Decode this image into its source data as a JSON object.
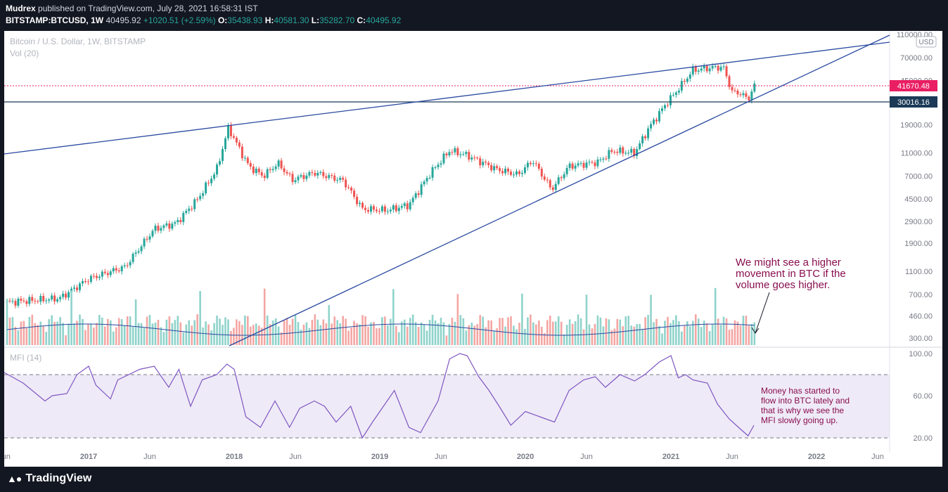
{
  "header": {
    "publisher": "Mudrex",
    "published_text": "published on TradingView.com, July 28, 2021 16:58:31 IST",
    "symbol": "BITSTAMP:BTCUSD, 1W",
    "price": "40495.92",
    "change": "+1020.51 (+2.59%)",
    "o_label": "O:",
    "o_value": "35438.93",
    "h_label": "H:",
    "h_value": "40581.30",
    "l_label": "L:",
    "l_value": "35282.70",
    "c_label": "C:",
    "c_value": "40495.92"
  },
  "legend": {
    "title": "Bitcoin / U.S. Dollar, 1W, BITSTAMP",
    "vol": "Vol (20)",
    "mfi": "MFI (14)",
    "currency": "USD"
  },
  "price_labels": {
    "resistance": "41670.48",
    "support": "30016.16"
  },
  "annotations": {
    "volume_note": [
      "We might see a higher",
      "movement in BTC if the",
      "volume goes higher."
    ],
    "mfi_note": [
      "Money has started to",
      "flow into BTC lately and",
      "that is why we see the",
      "MFI slowly going up."
    ]
  },
  "footer": {
    "brand": "TradingView"
  },
  "colors": {
    "up": "#26a69a",
    "down": "#ef5350",
    "trend": "#2a4aa0",
    "mfi": "#7e57c2",
    "note": "#880e4f"
  },
  "chart_data": [
    {
      "type": "candlestick",
      "title": "Bitcoin / U.S. Dollar, 1W, BITSTAMP",
      "y_scale": "log",
      "y_ticks": [
        "110000.00",
        "70000.00",
        "45000.00",
        "19000.00",
        "11000.00",
        "7000.00",
        "4500.00",
        "2900.00",
        "1900.00",
        "1100.00",
        "700.00",
        "460.00",
        "300.00"
      ],
      "x_ticks": [
        "Jun",
        "2017",
        "Jun",
        "2018",
        "Jun",
        "2019",
        "Jun",
        "2020",
        "Jun",
        "2021",
        "Jun",
        "2022",
        "Jun"
      ],
      "x_tick_dates": [
        2016.42,
        2017.0,
        2017.42,
        2018.0,
        2018.42,
        2019.0,
        2019.42,
        2020.0,
        2020.42,
        2021.0,
        2021.42,
        2022.0,
        2022.42
      ],
      "anchors": [
        [
          2016.42,
          600
        ],
        [
          2016.8,
          650
        ],
        [
          2017.0,
          950
        ],
        [
          2017.25,
          1200
        ],
        [
          2017.45,
          2500
        ],
        [
          2017.6,
          2800
        ],
        [
          2017.75,
          4500
        ],
        [
          2017.88,
          8000
        ],
        [
          2017.96,
          18000
        ],
        [
          2018.05,
          11000
        ],
        [
          2018.1,
          8500
        ],
        [
          2018.2,
          7000
        ],
        [
          2018.3,
          9000
        ],
        [
          2018.4,
          6500
        ],
        [
          2018.55,
          7500
        ],
        [
          2018.75,
          6400
        ],
        [
          2018.88,
          3700
        ],
        [
          2019.05,
          3600
        ],
        [
          2019.2,
          4000
        ],
        [
          2019.35,
          7500
        ],
        [
          2019.48,
          11500
        ],
        [
          2019.6,
          10500
        ],
        [
          2019.8,
          8000
        ],
        [
          2019.95,
          7200
        ],
        [
          2020.05,
          9500
        ],
        [
          2020.18,
          5400
        ],
        [
          2020.3,
          8500
        ],
        [
          2020.5,
          9200
        ],
        [
          2020.6,
          11500
        ],
        [
          2020.75,
          11000
        ],
        [
          2020.85,
          18000
        ],
        [
          2020.97,
          29000
        ],
        [
          2021.05,
          38000
        ],
        [
          2021.15,
          55000
        ],
        [
          2021.3,
          58000
        ],
        [
          2021.36,
          58000
        ],
        [
          2021.42,
          36000
        ],
        [
          2021.48,
          35000
        ],
        [
          2021.53,
          31000
        ],
        [
          2021.57,
          40495.92
        ]
      ],
      "horizontal_levels": [
        41670.48,
        30016.16
      ],
      "trendlines": [
        {
          "name": "upper-resistance",
          "from": [
            2016.42,
            10500
          ],
          "to": [
            2022.42,
            110000
          ]
        },
        {
          "name": "lower-support",
          "from": [
            2017.96,
            230
          ],
          "to": [
            2022.42,
            110000
          ]
        }
      ]
    },
    {
      "type": "bar",
      "title": "Vol (20)",
      "note": "relative weekly volume bars with 20-period moving average"
    },
    {
      "type": "line",
      "title": "MFI (14)",
      "y_ticks": [
        "100.00",
        "60.00",
        "20.00"
      ],
      "bands": [
        80,
        20
      ],
      "series": [
        {
          "name": "MFI",
          "points": [
            [
              2016.42,
              82
            ],
            [
              2016.55,
              72
            ],
            [
              2016.7,
              55
            ],
            [
              2016.75,
              60
            ],
            [
              2016.85,
              62
            ],
            [
              2016.92,
              80
            ],
            [
              2017.0,
              88
            ],
            [
              2017.05,
              70
            ],
            [
              2017.15,
              57
            ],
            [
              2017.2,
              75
            ],
            [
              2017.35,
              85
            ],
            [
              2017.45,
              88
            ],
            [
              2017.55,
              68
            ],
            [
              2017.62,
              85
            ],
            [
              2017.7,
              50
            ],
            [
              2017.78,
              75
            ],
            [
              2017.88,
              80
            ],
            [
              2017.95,
              90
            ],
            [
              2018.0,
              85
            ],
            [
              2018.08,
              40
            ],
            [
              2018.18,
              30
            ],
            [
              2018.28,
              55
            ],
            [
              2018.38,
              30
            ],
            [
              2018.45,
              48
            ],
            [
              2018.55,
              55
            ],
            [
              2018.62,
              50
            ],
            [
              2018.7,
              35
            ],
            [
              2018.8,
              50
            ],
            [
              2018.88,
              20
            ],
            [
              2018.95,
              35
            ],
            [
              2019.0,
              45
            ],
            [
              2019.1,
              65
            ],
            [
              2019.2,
              30
            ],
            [
              2019.28,
              25
            ],
            [
              2019.4,
              55
            ],
            [
              2019.48,
              95
            ],
            [
              2019.55,
              100
            ],
            [
              2019.6,
              98
            ],
            [
              2019.68,
              78
            ],
            [
              2019.75,
              65
            ],
            [
              2019.82,
              50
            ],
            [
              2019.9,
              32
            ],
            [
              2020.0,
              45
            ],
            [
              2020.1,
              40
            ],
            [
              2020.2,
              35
            ],
            [
              2020.3,
              65
            ],
            [
              2020.4,
              75
            ],
            [
              2020.48,
              78
            ],
            [
              2020.55,
              68
            ],
            [
              2020.65,
              80
            ],
            [
              2020.75,
              74
            ],
            [
              2020.82,
              80
            ],
            [
              2020.92,
              92
            ],
            [
              2021.0,
              98
            ],
            [
              2021.05,
              77
            ],
            [
              2021.1,
              80
            ],
            [
              2021.15,
              75
            ],
            [
              2021.25,
              72
            ],
            [
              2021.32,
              52
            ],
            [
              2021.4,
              38
            ],
            [
              2021.48,
              28
            ],
            [
              2021.53,
              22
            ],
            [
              2021.57,
              32
            ]
          ]
        }
      ]
    }
  ]
}
